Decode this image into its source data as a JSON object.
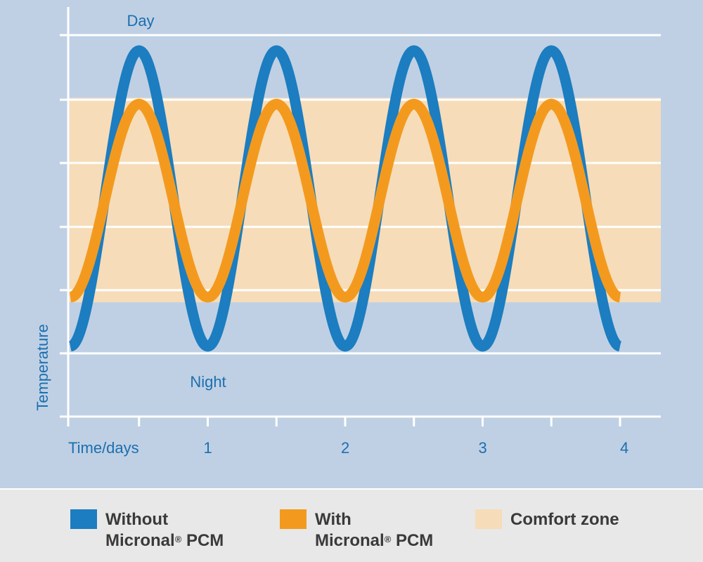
{
  "chart_data": {
    "type": "line",
    "title": "",
    "xlabel": "Time/days",
    "ylabel": "Temperature",
    "x_ticks": [
      "1",
      "2",
      "3",
      "4"
    ],
    "xlim": [
      0,
      4
    ],
    "annotations": {
      "top": "Day",
      "bottom": "Night"
    },
    "series": [
      {
        "name": "Without Micronal® PCM",
        "color": "#1c7dc0",
        "function": "cosine",
        "period_days": 1,
        "peak_days": [
          0.5,
          1.5,
          2.5,
          3.5
        ],
        "trough_days": [
          0,
          1,
          2,
          3,
          4
        ],
        "max": 4.7,
        "min": 0
      },
      {
        "name": "With Micronal® PCM",
        "color": "#f39a1e",
        "function": "cosine",
        "period_days": 1,
        "peak_days": [
          0.5,
          1.5,
          2.5,
          3.5
        ],
        "trough_days": [
          0,
          1,
          2,
          3,
          4
        ],
        "max": 3.85,
        "min": 0.78
      }
    ],
    "bands": [
      {
        "name": "Comfort zone",
        "color": "#f6dcb8",
        "from": 0.7,
        "to": 3.95
      }
    ],
    "grid": true,
    "legend_position": "bottom"
  },
  "legend": {
    "items": [
      {
        "line1": "Without",
        "line2_main": "Micronal",
        "line2_sup": "®",
        "line2_rest": " PCM",
        "color": "#1c7dc0"
      },
      {
        "line1": "With",
        "line2_main": "Micronal",
        "line2_sup": "®",
        "line2_rest": " PCM",
        "color": "#f39a1e"
      },
      {
        "line1": "Comfort zone",
        "line2_main": "",
        "line2_sup": "",
        "line2_rest": "",
        "color": "#f6dcb8"
      }
    ]
  }
}
